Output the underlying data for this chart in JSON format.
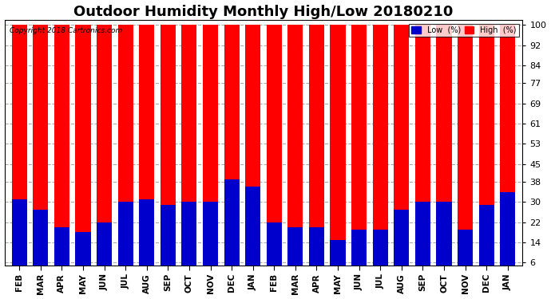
{
  "title": "Outdoor Humidity Monthly High/Low 20180210",
  "copyright": "Copyright 2018 Cartronics.com",
  "months": [
    "FEB",
    "MAR",
    "APR",
    "MAY",
    "JUN",
    "JUL",
    "AUG",
    "SEP",
    "OCT",
    "NOV",
    "DEC",
    "JAN",
    "FEB",
    "MAR",
    "APR",
    "MAY",
    "JUN",
    "JUL",
    "AUG",
    "SEP",
    "OCT",
    "NOV",
    "DEC",
    "JAN"
  ],
  "high_values": [
    100,
    100,
    100,
    100,
    100,
    100,
    100,
    100,
    100,
    100,
    100,
    100,
    100,
    100,
    100,
    100,
    100,
    100,
    100,
    100,
    100,
    100,
    100,
    100
  ],
  "low_values": [
    31,
    27,
    20,
    18,
    22,
    30,
    31,
    29,
    30,
    30,
    39,
    36,
    22,
    20,
    20,
    15,
    19,
    19,
    27,
    30,
    30,
    19,
    29,
    34
  ],
  "high_color": "#ff0000",
  "low_color": "#0000cc",
  "bg_color": "#ffffff",
  "plot_bg_color": "#ffffff",
  "grid_color": "#aaaaaa",
  "yticks": [
    6,
    14,
    22,
    30,
    38,
    45,
    53,
    61,
    69,
    77,
    84,
    92,
    100
  ],
  "ylim": [
    5,
    102
  ],
  "title_fontsize": 13,
  "legend_low_label": "Low  (%)",
  "legend_high_label": "High  (%)"
}
